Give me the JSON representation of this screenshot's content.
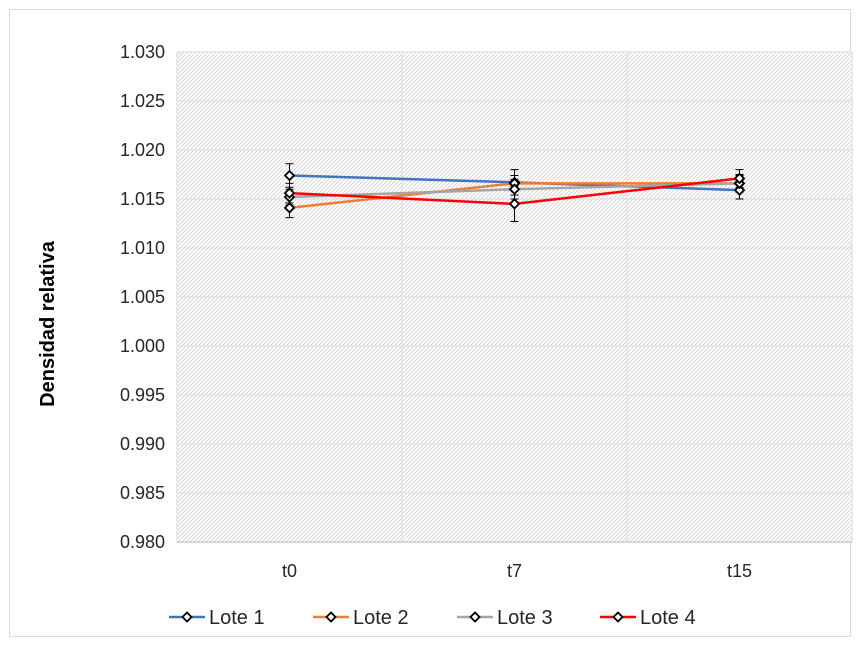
{
  "chart_data": {
    "type": "line",
    "title": "",
    "xlabel": "",
    "ylabel": "Densidad relativa",
    "categories": [
      "t0",
      "t7",
      "t15"
    ],
    "ylim": [
      0.98,
      1.03
    ],
    "y_ticks": [
      "0.980",
      "0.985",
      "0.990",
      "0.995",
      "1.000",
      "1.005",
      "1.010",
      "1.015",
      "1.020",
      "1.025",
      "1.030"
    ],
    "grid": true,
    "legend_position": "bottom",
    "series": [
      {
        "name": "Lote 1",
        "color": "#4472c4",
        "values": [
          1.0174,
          1.0167,
          1.0159
        ],
        "error": [
          0.0012,
          0.0013,
          0.0009
        ]
      },
      {
        "name": "Lote 2",
        "color": "#ed7d31",
        "values": [
          1.0141,
          1.0166,
          1.0166
        ],
        "error": [
          0.001,
          0.0008,
          0.0008
        ]
      },
      {
        "name": "Lote 3",
        "color": "#a5a5a5",
        "values": [
          1.0152,
          1.016,
          1.0166
        ],
        "error": [
          0.0008,
          0.001,
          0.0009
        ]
      },
      {
        "name": "Lote 4",
        "color": "#ff0000",
        "values": [
          1.0156,
          1.0145,
          1.0171
        ],
        "error": [
          0.001,
          0.0018,
          0.0009
        ]
      }
    ]
  }
}
